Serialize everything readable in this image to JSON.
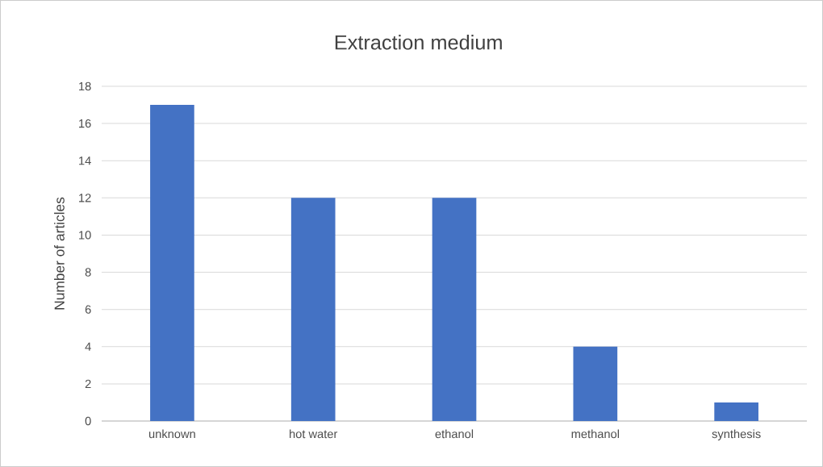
{
  "chart_data": {
    "type": "bar",
    "title": "Extraction medium",
    "ylabel": "Number of articles",
    "categories": [
      "unknown",
      "hot water",
      "ethanol",
      "methanol",
      "synthesis"
    ],
    "values": [
      17,
      12,
      12,
      4,
      1
    ],
    "color": "#4472c4",
    "ylim": [
      0,
      18
    ],
    "yticks": [
      0,
      2,
      4,
      6,
      8,
      10,
      12,
      14,
      16,
      18
    ],
    "grid": "y"
  }
}
